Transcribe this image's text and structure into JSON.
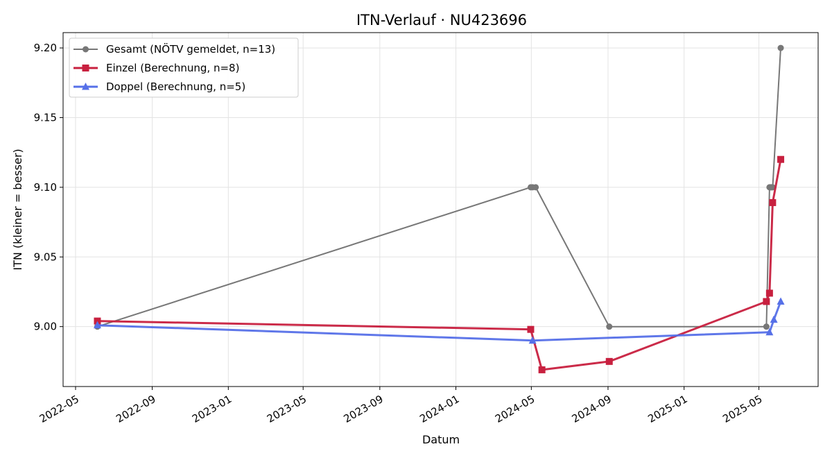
{
  "chart_data": {
    "type": "line",
    "title": "ITN-Verlauf · NU423696",
    "xlabel": "Datum",
    "ylabel": "ITN  (kleiner = besser)",
    "x_axis": "date",
    "xlim": [
      "2022-04-11",
      "2025-08-04"
    ],
    "ylim": [
      8.957,
      9.211
    ],
    "x_ticks": [
      "2022-05",
      "2022-09",
      "2023-01",
      "2023-05",
      "2023-09",
      "2024-01",
      "2024-05",
      "2024-09",
      "2025-01",
      "2025-05"
    ],
    "y_ticks": [
      9.0,
      9.05,
      9.1,
      9.15,
      9.2
    ],
    "grid": true,
    "legend_position": "top-left",
    "series": [
      {
        "name": "Gesamt (NÖTV gemeldet, n=13)",
        "color": "#777777",
        "marker": "circle",
        "points": [
          {
            "x": "2022-06-05",
            "y": 9.0
          },
          {
            "x": "2024-04-30",
            "y": 9.1
          },
          {
            "x": "2024-05-03",
            "y": 9.1
          },
          {
            "x": "2024-05-08",
            "y": 9.1
          },
          {
            "x": "2024-09-03",
            "y": 9.0
          },
          {
            "x": "2025-05-13",
            "y": 9.0
          },
          {
            "x": "2025-05-18",
            "y": 9.1
          },
          {
            "x": "2025-05-19",
            "y": 9.1
          },
          {
            "x": "2025-05-20",
            "y": 9.1
          },
          {
            "x": "2025-05-21",
            "y": 9.1
          },
          {
            "x": "2025-05-22",
            "y": 9.1
          },
          {
            "x": "2025-05-23",
            "y": 9.1
          },
          {
            "x": "2025-06-05",
            "y": 9.2
          }
        ]
      },
      {
        "name": "Einzel (Berechnung, n=8)",
        "color": "#c8203f",
        "marker": "square",
        "points": [
          {
            "x": "2022-06-05",
            "y": 9.004
          },
          {
            "x": "2024-04-30",
            "y": 8.998
          },
          {
            "x": "2024-05-18",
            "y": 8.969
          },
          {
            "x": "2024-09-03",
            "y": 8.975
          },
          {
            "x": "2025-05-13",
            "y": 9.018
          },
          {
            "x": "2025-05-18",
            "y": 9.024
          },
          {
            "x": "2025-05-23",
            "y": 9.089
          },
          {
            "x": "2025-06-05",
            "y": 9.12
          }
        ]
      },
      {
        "name": "Doppel (Berechnung, n=5)",
        "color": "#5670e8",
        "marker": "triangle",
        "points": [
          {
            "x": "2022-06-05",
            "y": 9.001
          },
          {
            "x": "2024-05-03",
            "y": 8.99
          },
          {
            "x": "2025-05-18",
            "y": 8.996
          },
          {
            "x": "2025-05-25",
            "y": 9.005
          },
          {
            "x": "2025-06-05",
            "y": 9.018
          }
        ]
      }
    ]
  }
}
